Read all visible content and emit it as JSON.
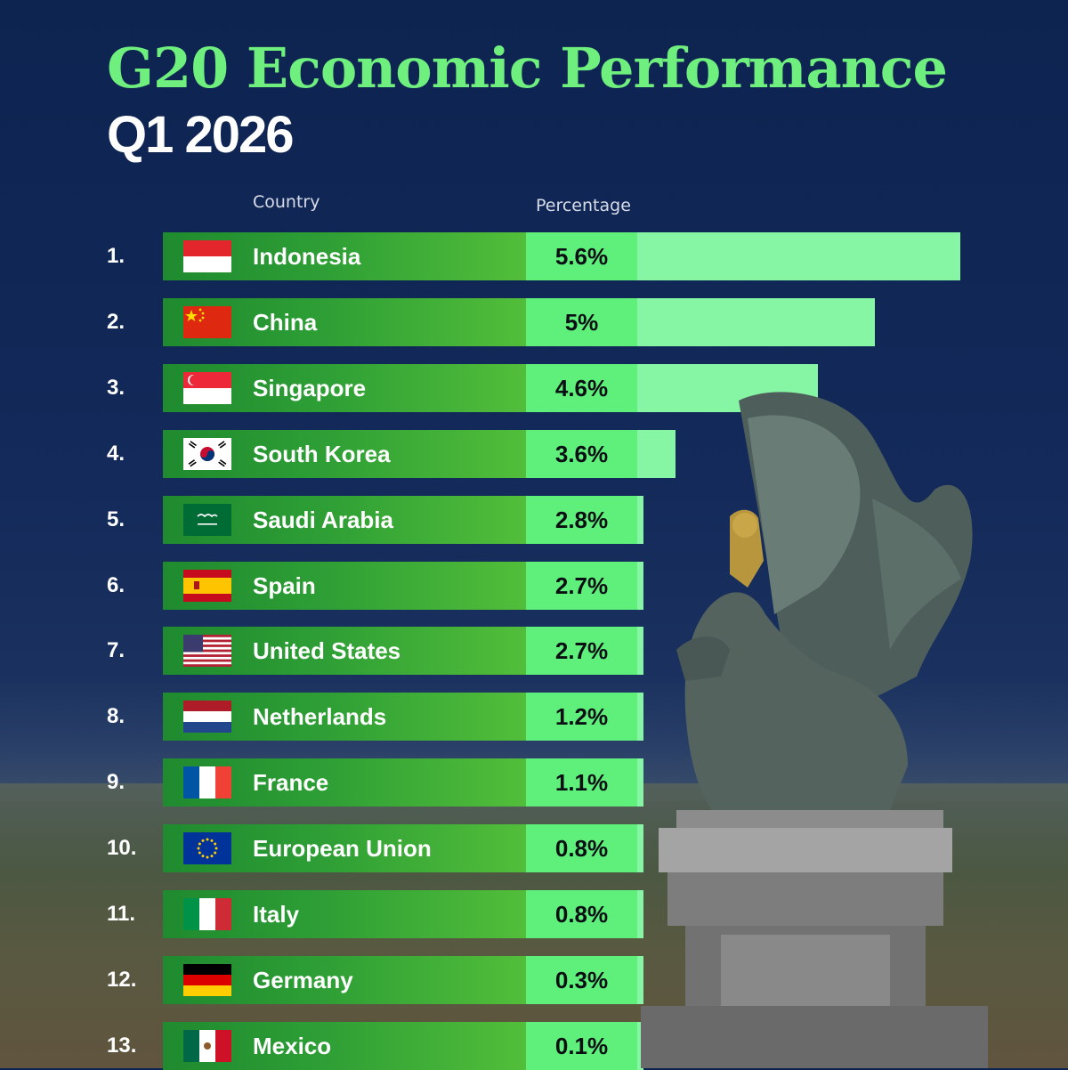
{
  "header": {
    "title": "G20 Economic Performance",
    "subtitle": "Q1 2026",
    "col_country": "Country",
    "col_percentage": "Percentage"
  },
  "chart_data": {
    "type": "bar",
    "title": "G20 Economic Performance",
    "subtitle": "Q1 2026",
    "xlabel": "Country",
    "ylabel": "Percentage",
    "categories": [
      "Indonesia",
      "China",
      "Singapore",
      "South Korea",
      "Saudi Arabia",
      "Spain",
      "United States",
      "Netherlands",
      "France",
      "European Union",
      "Italy",
      "Germany",
      "Mexico"
    ],
    "values": [
      5.6,
      5,
      4.6,
      3.6,
      2.8,
      2.7,
      2.7,
      1.2,
      1.1,
      0.8,
      0.8,
      0.3,
      0.1
    ],
    "ranks": [
      "1.",
      "2.",
      "3.",
      "4.",
      "5.",
      "6.",
      "7.",
      "8.",
      "9.",
      "10.",
      "11.",
      "12.",
      "13."
    ],
    "labels": [
      "5.6%",
      "5%",
      "4.6%",
      "3.6%",
      "2.8%",
      "2.7%",
      "2.7%",
      "1.2%",
      "1.1%",
      "0.8%",
      "0.8%",
      "0.3%",
      "0.1%"
    ],
    "flags": [
      "indonesia-flag-icon",
      "china-flag-icon",
      "singapore-flag-icon",
      "south-korea-flag-icon",
      "saudi-arabia-flag-icon",
      "spain-flag-icon",
      "united-states-flag-icon",
      "netherlands-flag-icon",
      "france-flag-icon",
      "european-union-flag-icon",
      "italy-flag-icon",
      "germany-flag-icon",
      "mexico-flag-icon"
    ],
    "colors": {
      "title": "#6fef7e",
      "bar_dark": "#1f8a2f",
      "bar_mid": "#52be3a",
      "value_cell": "#5ff07b",
      "bar_light": "#86f5a4",
      "background": "#0d2350"
    }
  }
}
